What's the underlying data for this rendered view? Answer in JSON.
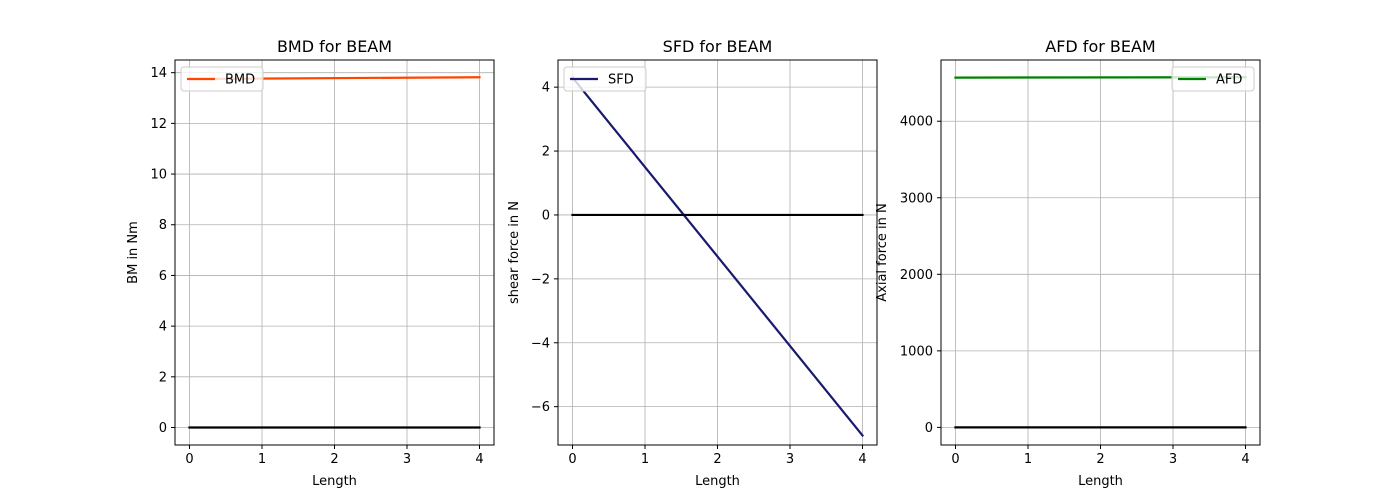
{
  "chart_data": [
    {
      "type": "line",
      "title": "BMD for BEAM",
      "xlabel": "Length",
      "ylabel": "BM in Nm",
      "xlim": [
        -0.2,
        4.2
      ],
      "ylim": [
        -0.69,
        14.5
      ],
      "xticks": [
        0,
        1,
        2,
        3,
        4
      ],
      "xtick_labels": [
        "0",
        "1",
        "2",
        "3",
        "4"
      ],
      "yticks": [
        0,
        2,
        4,
        6,
        8,
        10,
        12,
        14
      ],
      "ytick_labels": [
        "0",
        "2",
        "4",
        "6",
        "8",
        "10",
        "12",
        "14"
      ],
      "grid": true,
      "legend_position": "top-left",
      "series": [
        {
          "name": "BMD",
          "color": "#ff4500",
          "x": [
            0,
            4
          ],
          "y": [
            13.75,
            13.82
          ],
          "in_legend": true
        },
        {
          "color": "#000000",
          "x": [
            0,
            4
          ],
          "y": [
            0,
            0
          ],
          "in_legend": false
        }
      ]
    },
    {
      "type": "line",
      "title": "SFD for BEAM",
      "xlabel": "Length",
      "ylabel": "shear force in N",
      "xlim": [
        -0.2,
        4.2
      ],
      "ylim": [
        -7.2,
        4.85
      ],
      "xticks": [
        0,
        1,
        2,
        3,
        4
      ],
      "xtick_labels": [
        "0",
        "1",
        "2",
        "3",
        "4"
      ],
      "yticks": [
        -6,
        -4,
        -2,
        0,
        2,
        4
      ],
      "ytick_labels": [
        "−6",
        "−4",
        "−2",
        "0",
        "2",
        "4"
      ],
      "grid": true,
      "legend_position": "top-left",
      "series": [
        {
          "name": "SFD",
          "color": "#191970",
          "x": [
            0,
            4
          ],
          "y": [
            4.3,
            -6.9
          ],
          "in_legend": true
        },
        {
          "color": "#000000",
          "x": [
            0,
            4
          ],
          "y": [
            0,
            0
          ],
          "in_legend": false
        }
      ]
    },
    {
      "type": "line",
      "title": "AFD for BEAM",
      "xlabel": "Length",
      "ylabel": "Axial force in N",
      "xlim": [
        -0.2,
        4.2
      ],
      "ylim": [
        -230,
        4800
      ],
      "xticks": [
        0,
        1,
        2,
        3,
        4
      ],
      "xtick_labels": [
        "0",
        "1",
        "2",
        "3",
        "4"
      ],
      "yticks": [
        0,
        1000,
        2000,
        3000,
        4000
      ],
      "ytick_labels": [
        "0",
        "1000",
        "2000",
        "3000",
        "4000"
      ],
      "grid": true,
      "legend_position": "top-right",
      "series": [
        {
          "name": "AFD",
          "color": "#008000",
          "x": [
            0,
            4
          ],
          "y": [
            4570,
            4575
          ],
          "in_legend": true
        },
        {
          "color": "#000000",
          "x": [
            0,
            4
          ],
          "y": [
            0,
            0
          ],
          "in_legend": false
        }
      ]
    }
  ]
}
